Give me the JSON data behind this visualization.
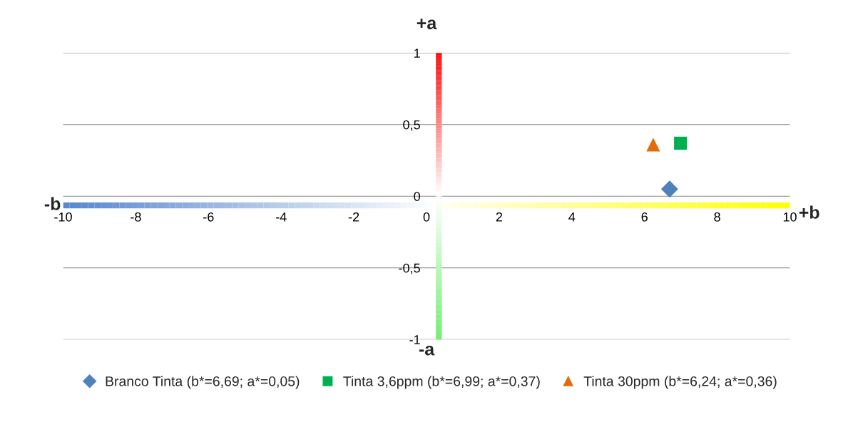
{
  "chart_data": {
    "type": "scatter",
    "annotations": [
      "+a",
      "-a",
      "-b",
      "+b"
    ],
    "series": [
      {
        "name": "Branco Tinta (b*=6,69; a*=0,05)",
        "color": "#4f81bd",
        "marker": "diamond",
        "x": [
          6.69
        ],
        "values": [
          0.05
        ]
      },
      {
        "name": "Tinta 3,6ppm (b*=6,99; a*=0,37)",
        "color": "#00b050",
        "marker": "square",
        "x": [
          6.99
        ],
        "values": [
          0.37
        ]
      },
      {
        "name": "Tinta 30ppm (b*=6,24; a*=0,36)",
        "color": "#e36c09",
        "marker": "triangle",
        "x": [
          6.24
        ],
        "values": [
          0.36
        ]
      }
    ],
    "xlim": [
      -10,
      10
    ],
    "xticks": [
      -10,
      -8,
      -6,
      -4,
      -2,
      0,
      2,
      4,
      6,
      8,
      10
    ],
    "ylim": [
      -1,
      1
    ],
    "yticks": [
      {
        "value": -1,
        "label": "-1"
      },
      {
        "value": -0.5,
        "label": "-0,5"
      },
      0,
      {
        "value": 0.5,
        "label": "0,5"
      },
      1
    ],
    "grid": "y",
    "legend": "bottom"
  }
}
